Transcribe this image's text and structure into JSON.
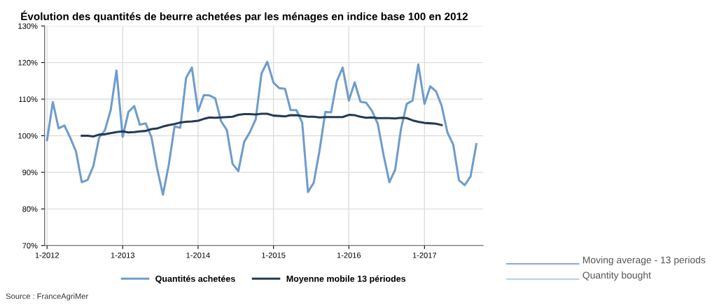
{
  "chart_data": {
    "type": "line",
    "title": "Évolution des quantités de beurre achetées par les ménages en indice base 100 en 2012",
    "x": [
      "2012-01-01",
      "2012-01-29",
      "2012-02-26",
      "2012-03-25",
      "2012-04-22",
      "2012-05-20",
      "2012-06-17",
      "2012-07-15",
      "2012-08-12",
      "2012-09-09",
      "2012-10-07",
      "2012-11-04",
      "2012-12-02",
      "2013-01-01",
      "2013-01-29",
      "2013-02-26",
      "2013-03-25",
      "2013-04-22",
      "2013-05-20",
      "2013-06-17",
      "2013-07-15",
      "2013-08-12",
      "2013-09-09",
      "2013-10-07",
      "2013-11-04",
      "2013-12-02",
      "2014-01-01",
      "2014-01-29",
      "2014-02-26",
      "2014-03-25",
      "2014-04-22",
      "2014-05-20",
      "2014-06-17",
      "2014-07-15",
      "2014-08-12",
      "2014-09-09",
      "2014-10-07",
      "2014-11-04",
      "2014-12-02",
      "2015-01-01",
      "2015-01-29",
      "2015-02-26",
      "2015-03-25",
      "2015-04-22",
      "2015-05-20",
      "2015-06-17",
      "2015-07-15",
      "2015-08-12",
      "2015-09-09",
      "2015-10-07",
      "2015-11-04",
      "2015-12-02",
      "2016-01-01",
      "2016-01-29",
      "2016-02-26",
      "2016-03-25",
      "2016-04-22",
      "2016-05-20",
      "2016-06-17",
      "2016-07-15",
      "2016-08-12",
      "2016-09-09",
      "2016-10-07",
      "2016-11-04",
      "2016-12-02",
      "2017-01-01",
      "2017-01-29",
      "2017-02-26",
      "2017-03-25",
      "2017-04-22",
      "2017-05-20",
      "2017-06-17",
      "2017-07-15",
      "2017-08-12",
      "2017-09-09"
    ],
    "series": [
      {
        "name": "Quantités achetées",
        "color": "#6f9ccc",
        "values": [
          98.8,
          109.2,
          102,
          102.8,
          99.5,
          95.7,
          87.3,
          87.9,
          91.7,
          99.5,
          101.5,
          107,
          117.8,
          99.7,
          106.5,
          108.1,
          103,
          103.4,
          99.7,
          91,
          83.9,
          92,
          102.5,
          102.2,
          115.8,
          118.6,
          106.7,
          111.1,
          111,
          110.2,
          104,
          101.6,
          92.3,
          90.3,
          98.3,
          101,
          104.5,
          117,
          120.2,
          114.5,
          113,
          112.8,
          107,
          107,
          103.6,
          84.6,
          87.2,
          96,
          106.5,
          106.4,
          115,
          118.6,
          109.6,
          114.6,
          109.3,
          109,
          106.8,
          103.2,
          94.7,
          87.3,
          90.7,
          101.8,
          108.7,
          109.6,
          119.5,
          108.7,
          113.5,
          112.1,
          108.2,
          100.9,
          97.6,
          87.8,
          86.5,
          88.9,
          97.7
        ]
      },
      {
        "name": "Moyenne mobile 13 périodes",
        "color": "#243a55",
        "values": [
          null,
          null,
          null,
          null,
          null,
          null,
          100,
          100,
          99.8,
          100.3,
          100.4,
          100.7,
          101,
          101.2,
          100.9,
          101,
          101.2,
          101.3,
          101.8,
          102,
          102.5,
          102.9,
          103.2,
          103.6,
          103.8,
          103.9,
          104.1,
          104.6,
          105,
          104.9,
          105,
          105.1,
          105.2,
          105.7,
          105.9,
          105.9,
          105.8,
          106,
          106,
          105.5,
          105.4,
          105.3,
          105.6,
          105.6,
          105.4,
          105.2,
          105.2,
          105,
          105.1,
          105.1,
          105.1,
          105.1,
          105.7,
          105.6,
          105.2,
          104.9,
          105,
          104.8,
          104.8,
          104.8,
          104.7,
          104.9,
          104.8,
          104.2,
          103.8,
          103.5,
          103.4,
          103.3,
          102.9,
          null,
          null,
          null,
          null,
          null,
          null
        ]
      }
    ],
    "xlim": [
      "2011-12-20",
      "2017-10-12"
    ],
    "xticks": [
      {
        "value": "2012-01-01",
        "label": "1-2012"
      },
      {
        "value": "2013-01-01",
        "label": "1-2013"
      },
      {
        "value": "2014-01-01",
        "label": "1-2014"
      },
      {
        "value": "2015-01-01",
        "label": "1-2015"
      },
      {
        "value": "2016-01-01",
        "label": "1-2016"
      },
      {
        "value": "2017-01-01",
        "label": "1-2017"
      }
    ],
    "ylim": [
      70,
      130
    ],
    "yticks": [
      {
        "value": 70,
        "label": "70%"
      },
      {
        "value": 80,
        "label": "80%"
      },
      {
        "value": 90,
        "label": "90%"
      },
      {
        "value": 100,
        "label": "100%"
      },
      {
        "value": 110,
        "label": "110%"
      },
      {
        "value": 120,
        "label": "120%"
      },
      {
        "value": 130,
        "label": "130%"
      }
    ],
    "grid": true,
    "legend": "bottom",
    "marker": "none",
    "line_style": "solid",
    "annotations": [
      "Moving average - 13 periods",
      "Quantity bought",
      "Source : FranceAgriMer"
    ]
  }
}
